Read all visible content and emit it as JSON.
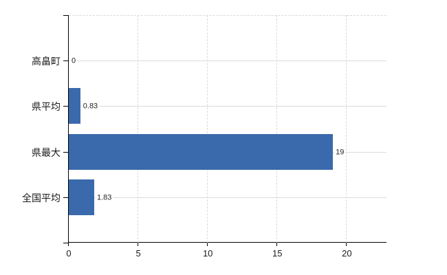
{
  "chart_data": {
    "type": "bar",
    "orientation": "horizontal",
    "title": "",
    "categories": [
      "高畠町",
      "県平均",
      "県最大",
      "全国平均"
    ],
    "values": [
      0,
      0.83,
      19,
      1.83
    ],
    "value_labels": [
      "0",
      "0.83",
      "19",
      "1.83"
    ],
    "x_ticks": [
      0,
      5,
      10,
      15,
      20
    ],
    "x_tick_labels": [
      "0",
      "5",
      "10",
      "15",
      "20"
    ],
    "xlim": [
      0,
      22.9
    ],
    "grid": "on",
    "legend": "none",
    "colors": {
      "bar": "#3a6aac",
      "axis": "#000000",
      "grid_horizontal": "#d7ded5",
      "grid_vertical": "#d9d9d9",
      "tick_label": "#1a1a1a",
      "value_label": "#222222",
      "background": "#ffffff"
    }
  }
}
